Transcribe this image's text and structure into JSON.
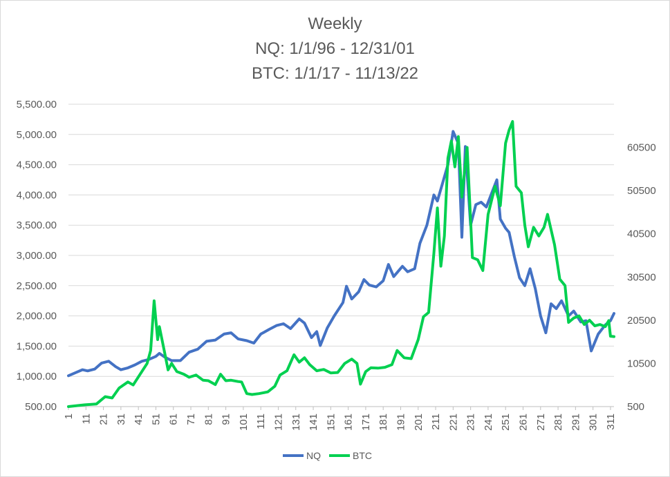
{
  "chart_data": {
    "type": "line",
    "title_lines": [
      "Weekly",
      "NQ: 1/1/96 - 12/31/01",
      "BTC: 1/1/17 - 11/13/22"
    ],
    "xlabel": "",
    "ylabel": "",
    "x_tick_labels": [
      "1",
      "11",
      "21",
      "31",
      "41",
      "51",
      "61",
      "71",
      "81",
      "91",
      "101",
      "111",
      "121",
      "131",
      "141",
      "151",
      "161",
      "171",
      "181",
      "191",
      "201",
      "211",
      "221",
      "231",
      "241",
      "251",
      "261",
      "271",
      "281",
      "291",
      "301",
      "311"
    ],
    "x_range": [
      1,
      313
    ],
    "y_left": {
      "range": [
        500,
        5500
      ],
      "tick_labels": [
        "500.00",
        "1,000.00",
        "1,500.00",
        "2,000.00",
        "2,500.00",
        "3,000.00",
        "3,500.00",
        "4,000.00",
        "4,500.00",
        "5,000.00",
        "5,500.00"
      ],
      "tick_values": [
        500,
        1000,
        1500,
        2000,
        2500,
        3000,
        3500,
        4000,
        4500,
        5000,
        5500
      ]
    },
    "y_right": {
      "range": [
        500,
        70500
      ],
      "tick_labels": [
        "500",
        "10500",
        "20500",
        "30500",
        "40500",
        "50500",
        "60500"
      ],
      "tick_values": [
        500,
        10500,
        20500,
        30500,
        40500,
        50500,
        60500
      ]
    },
    "grid": true,
    "legend_position": "bottom",
    "series": [
      {
        "name": "NQ",
        "axis": "left",
        "color": "#4472C4",
        "points": [
          [
            1,
            1010
          ],
          [
            5,
            1060
          ],
          [
            9,
            1110
          ],
          [
            12,
            1090
          ],
          [
            16,
            1120
          ],
          [
            20,
            1220
          ],
          [
            24,
            1250
          ],
          [
            28,
            1160
          ],
          [
            31,
            1110
          ],
          [
            35,
            1140
          ],
          [
            39,
            1190
          ],
          [
            43,
            1250
          ],
          [
            47,
            1280
          ],
          [
            51,
            1330
          ],
          [
            53,
            1380
          ],
          [
            56,
            1320
          ],
          [
            60,
            1260
          ],
          [
            65,
            1260
          ],
          [
            70,
            1400
          ],
          [
            75,
            1450
          ],
          [
            80,
            1580
          ],
          [
            85,
            1600
          ],
          [
            90,
            1700
          ],
          [
            94,
            1720
          ],
          [
            98,
            1620
          ],
          [
            103,
            1590
          ],
          [
            107,
            1550
          ],
          [
            111,
            1700
          ],
          [
            116,
            1780
          ],
          [
            120,
            1840
          ],
          [
            124,
            1870
          ],
          [
            128,
            1790
          ],
          [
            133,
            1950
          ],
          [
            136,
            1880
          ],
          [
            140,
            1640
          ],
          [
            143,
            1740
          ],
          [
            145,
            1510
          ],
          [
            149,
            1800
          ],
          [
            153,
            2000
          ],
          [
            158,
            2220
          ],
          [
            160,
            2490
          ],
          [
            163,
            2280
          ],
          [
            167,
            2400
          ],
          [
            170,
            2600
          ],
          [
            173,
            2510
          ],
          [
            177,
            2480
          ],
          [
            181,
            2580
          ],
          [
            184,
            2850
          ],
          [
            187,
            2650
          ],
          [
            192,
            2820
          ],
          [
            195,
            2730
          ],
          [
            199,
            2780
          ],
          [
            202,
            3200
          ],
          [
            206,
            3500
          ],
          [
            210,
            4000
          ],
          [
            212,
            3900
          ],
          [
            215,
            4200
          ],
          [
            218,
            4500
          ],
          [
            221,
            5050
          ],
          [
            224,
            4850
          ],
          [
            226,
            3300
          ],
          [
            228,
            4800
          ],
          [
            231,
            3500
          ],
          [
            234,
            3840
          ],
          [
            237,
            3880
          ],
          [
            240,
            3800
          ],
          [
            244,
            4100
          ],
          [
            246,
            4250
          ],
          [
            248,
            3600
          ],
          [
            251,
            3450
          ],
          [
            253,
            3380
          ],
          [
            256,
            2980
          ],
          [
            259,
            2630
          ],
          [
            262,
            2500
          ],
          [
            265,
            2780
          ],
          [
            268,
            2450
          ],
          [
            271,
            2000
          ],
          [
            274,
            1720
          ],
          [
            277,
            2200
          ],
          [
            280,
            2120
          ],
          [
            283,
            2250
          ],
          [
            287,
            2000
          ],
          [
            290,
            2080
          ],
          [
            294,
            1900
          ],
          [
            297,
            1920
          ],
          [
            300,
            1420
          ],
          [
            304,
            1700
          ],
          [
            308,
            1850
          ],
          [
            311,
            1920
          ],
          [
            313,
            2040
          ]
        ]
      },
      {
        "name": "BTC",
        "axis": "right",
        "color": "#00D050",
        "points": [
          [
            1,
            500
          ],
          [
            10,
            900
          ],
          [
            17,
            1100
          ],
          [
            22,
            2800
          ],
          [
            26,
            2500
          ],
          [
            30,
            4800
          ],
          [
            35,
            6200
          ],
          [
            38,
            5500
          ],
          [
            42,
            8000
          ],
          [
            46,
            10500
          ],
          [
            48,
            13500
          ],
          [
            50,
            25000
          ],
          [
            52,
            16000
          ],
          [
            53,
            19000
          ],
          [
            56,
            13000
          ],
          [
            58,
            9000
          ],
          [
            60,
            10500
          ],
          [
            63,
            8600
          ],
          [
            67,
            8000
          ],
          [
            70,
            7300
          ],
          [
            74,
            7800
          ],
          [
            78,
            6600
          ],
          [
            81,
            6500
          ],
          [
            85,
            5600
          ],
          [
            88,
            8000
          ],
          [
            91,
            6500
          ],
          [
            94,
            6600
          ],
          [
            98,
            6300
          ],
          [
            100,
            6200
          ],
          [
            103,
            3500
          ],
          [
            106,
            3300
          ],
          [
            110,
            3500
          ],
          [
            115,
            3900
          ],
          [
            119,
            5200
          ],
          [
            122,
            7800
          ],
          [
            126,
            8800
          ],
          [
            130,
            12500
          ],
          [
            133,
            10800
          ],
          [
            136,
            11800
          ],
          [
            139,
            10200
          ],
          [
            143,
            8800
          ],
          [
            147,
            9100
          ],
          [
            151,
            8300
          ],
          [
            155,
            8400
          ],
          [
            159,
            10500
          ],
          [
            163,
            11500
          ],
          [
            166,
            10500
          ],
          [
            168,
            5700
          ],
          [
            171,
            8600
          ],
          [
            174,
            9500
          ],
          [
            178,
            9400
          ],
          [
            182,
            9600
          ],
          [
            186,
            10200
          ],
          [
            189,
            13500
          ],
          [
            193,
            11800
          ],
          [
            197,
            11600
          ],
          [
            201,
            16000
          ],
          [
            204,
            21300
          ],
          [
            207,
            22300
          ],
          [
            210,
            36000
          ],
          [
            212,
            46500
          ],
          [
            214,
            33000
          ],
          [
            216,
            40000
          ],
          [
            218,
            58000
          ],
          [
            220,
            62000
          ],
          [
            222,
            56000
          ],
          [
            224,
            63000
          ],
          [
            226,
            49000
          ],
          [
            229,
            60500
          ],
          [
            232,
            35000
          ],
          [
            235,
            34500
          ],
          [
            238,
            32000
          ],
          [
            241,
            45000
          ],
          [
            245,
            51500
          ],
          [
            248,
            47000
          ],
          [
            251,
            61500
          ],
          [
            253,
            64500
          ],
          [
            255,
            66500
          ],
          [
            257,
            51500
          ],
          [
            260,
            50000
          ],
          [
            262,
            42500
          ],
          [
            264,
            37500
          ],
          [
            267,
            42000
          ],
          [
            270,
            40000
          ],
          [
            273,
            42000
          ],
          [
            275,
            45000
          ],
          [
            279,
            38000
          ],
          [
            282,
            30000
          ],
          [
            285,
            28500
          ],
          [
            287,
            20000
          ],
          [
            290,
            21000
          ],
          [
            293,
            21500
          ],
          [
            296,
            19500
          ],
          [
            299,
            20500
          ],
          [
            302,
            19200
          ],
          [
            305,
            19500
          ],
          [
            308,
            19000
          ],
          [
            310,
            20400
          ],
          [
            311,
            16800
          ],
          [
            313,
            16700
          ]
        ]
      }
    ]
  }
}
